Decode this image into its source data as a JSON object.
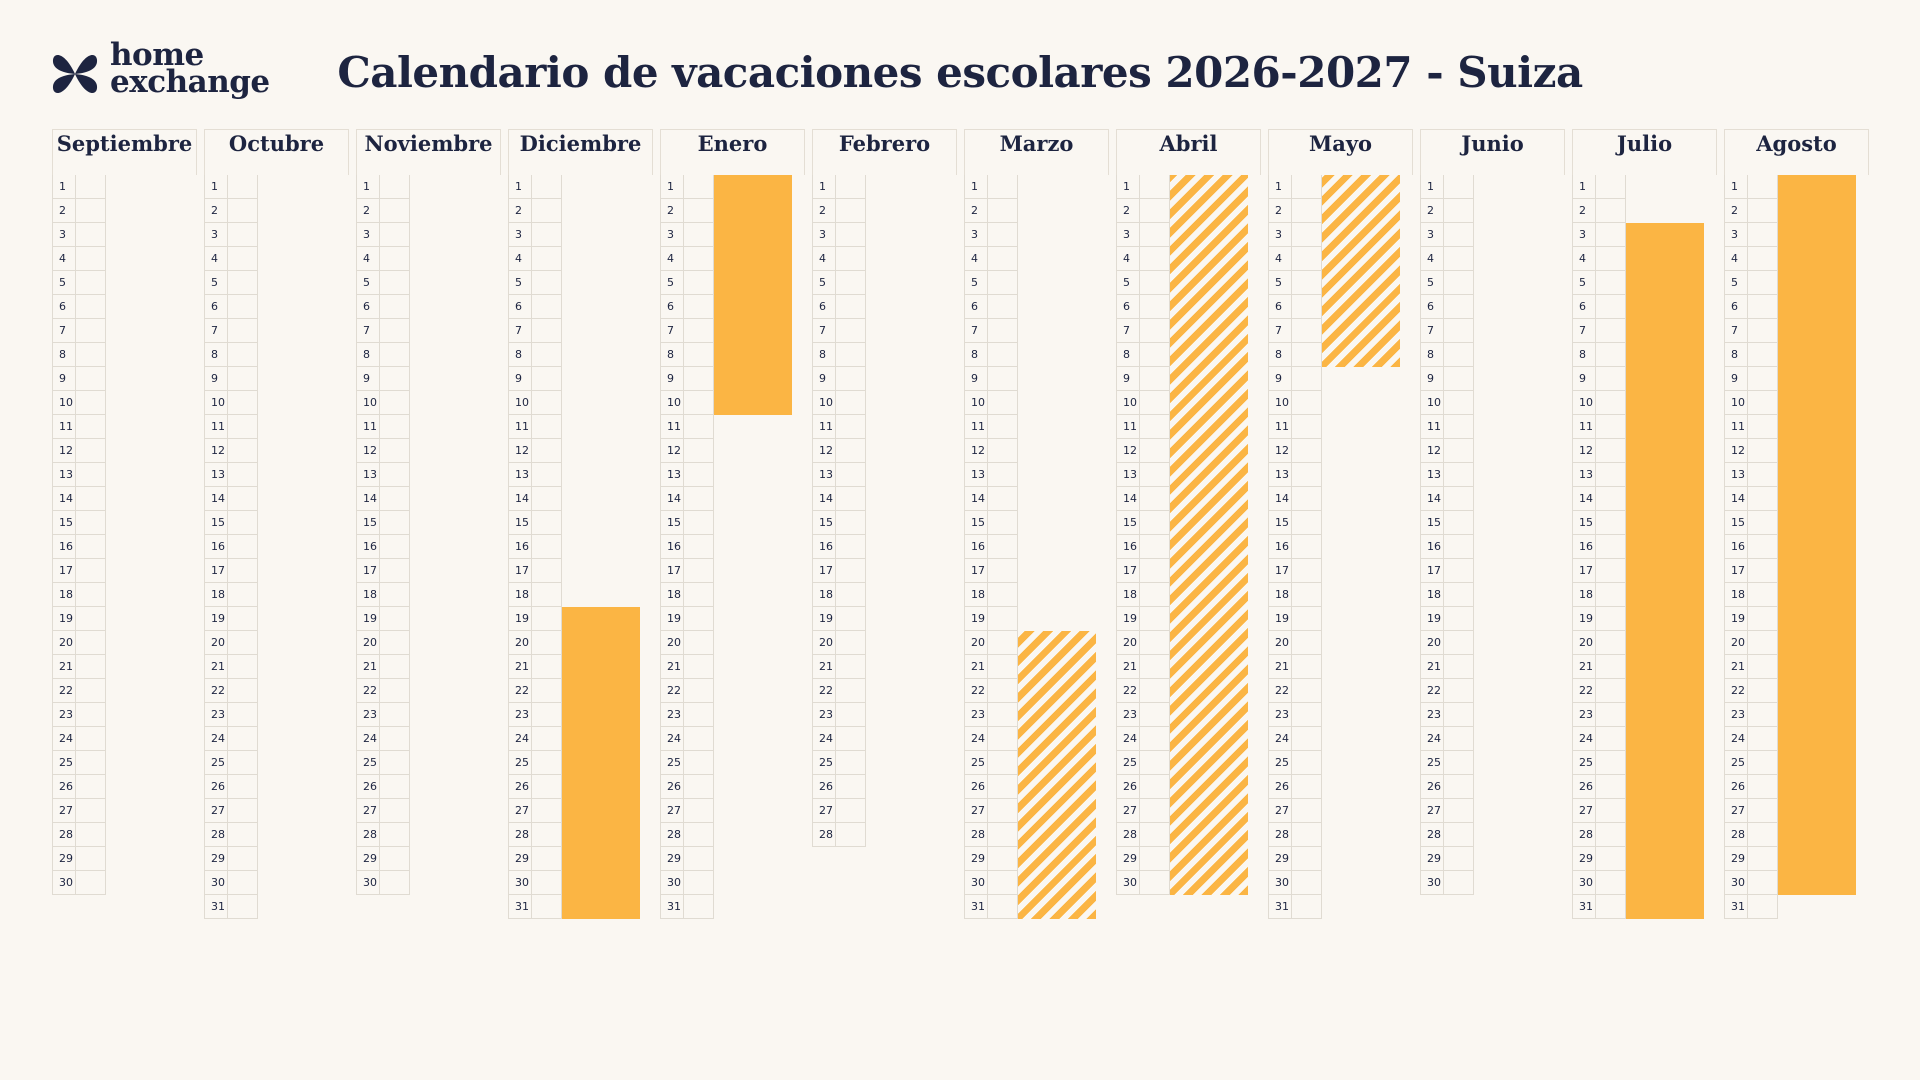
{
  "logo": {
    "line1": "home",
    "line2": "exchange",
    "icon": "homeexchange-logo-icon"
  },
  "title": "Calendario de vacaciones escolares 2026-2027 - Suiza",
  "colors": {
    "background": "#faf7f2",
    "text": "#1d2440",
    "holiday": "#fbb544",
    "grid": "#e0dbd2"
  },
  "months": [
    {
      "name": "Septiembre",
      "days": 30,
      "holidays": []
    },
    {
      "name": "Octubre",
      "days": 31,
      "holidays": []
    },
    {
      "name": "Noviembre",
      "days": 30,
      "holidays": []
    },
    {
      "name": "Diciembre",
      "days": 31,
      "holidays": [
        {
          "start": 19,
          "end": 31,
          "style": "solid"
        }
      ]
    },
    {
      "name": "Enero",
      "days": 31,
      "holidays": [
        {
          "start": 1,
          "end": 10,
          "style": "solid"
        }
      ]
    },
    {
      "name": "Febrero",
      "days": 28,
      "holidays": []
    },
    {
      "name": "Marzo",
      "days": 31,
      "holidays": [
        {
          "start": 20,
          "end": 31,
          "style": "hatched"
        }
      ]
    },
    {
      "name": "Abril",
      "days": 30,
      "holidays": [
        {
          "start": 1,
          "end": 30,
          "style": "hatched"
        }
      ]
    },
    {
      "name": "Mayo",
      "days": 31,
      "holidays": [
        {
          "start": 1,
          "end": 8,
          "style": "hatched"
        }
      ]
    },
    {
      "name": "Junio",
      "days": 30,
      "holidays": []
    },
    {
      "name": "Julio",
      "days": 31,
      "holidays": [
        {
          "start": 3,
          "end": 31,
          "style": "solid"
        }
      ]
    },
    {
      "name": "Agosto",
      "days": 31,
      "holidays": [
        {
          "start": 1,
          "end": 30,
          "style": "solid"
        }
      ]
    }
  ]
}
